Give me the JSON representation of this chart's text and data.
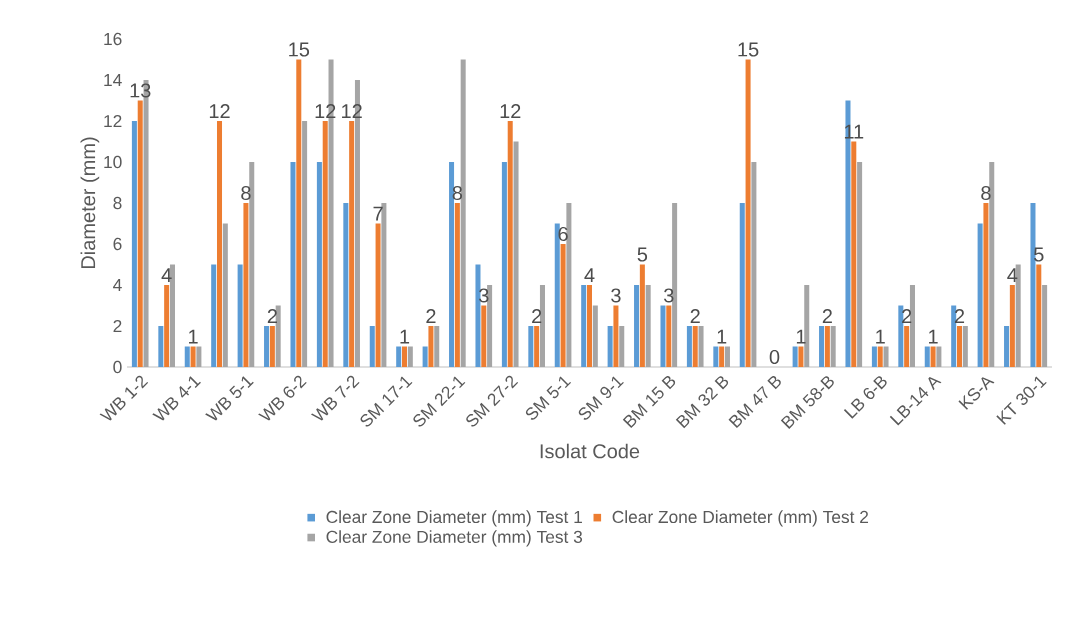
{
  "chart_data": {
    "type": "bar",
    "xlabel": "Isolat Code",
    "ylabel": "Diameter (mm)",
    "categories": [
      "WB 1-2",
      null,
      "WB 4-1",
      null,
      "WB 5-1",
      null,
      "WB 6-2",
      null,
      "WB 7-2",
      null,
      "SM 17-1",
      null,
      "SM 22-1",
      null,
      "SM 27-2",
      null,
      "SM 5-1",
      null,
      "SM 9-1",
      null,
      "BM 15 B",
      null,
      "BM 32 B",
      null,
      "BM 47 B",
      null,
      "BM 58-B",
      null,
      "LB 6-B",
      null,
      "LB-14 A",
      null,
      "KS-A",
      null,
      "KT 30-1"
    ],
    "series": [
      {
        "name": "Clear Zone Diameter (mm) Test 1",
        "color": "#5b9bd5",
        "values": [
          12,
          2,
          1,
          5,
          5,
          2,
          10,
          10,
          8,
          2,
          1,
          1,
          10,
          5,
          10,
          2,
          7,
          4,
          2,
          4,
          3,
          2,
          1,
          8,
          0,
          1,
          2,
          13,
          1,
          3,
          1,
          3,
          7,
          2,
          8
        ]
      },
      {
        "name": "Clear Zone Diameter (mm) Test 2",
        "color": "#ed7d31",
        "values": [
          13,
          4,
          1,
          12,
          8,
          2,
          15,
          12,
          12,
          7,
          1,
          2,
          8,
          3,
          12,
          2,
          6,
          4,
          3,
          5,
          3,
          2,
          1,
          15,
          0,
          1,
          2,
          11,
          1,
          2,
          1,
          2,
          8,
          4,
          5
        ],
        "value_labels": [
          "13",
          "4",
          "1",
          "12",
          "8",
          "2",
          "15",
          "12",
          "12",
          "7",
          "1",
          "2",
          "8",
          "3",
          "12",
          "2",
          "6",
          "4",
          "3",
          "5",
          "3",
          "2",
          "1",
          "15",
          "0",
          "1",
          "2",
          "11",
          "1",
          "2",
          "1",
          "2",
          "8",
          "4",
          "5"
        ]
      },
      {
        "name": "Clear Zone Diameter (mm) Test 3",
        "color": "#a5a5a5",
        "values": [
          14,
          5,
          1,
          7,
          10,
          3,
          12,
          15,
          14,
          8,
          1,
          2,
          15,
          4,
          11,
          4,
          8,
          3,
          2,
          4,
          8,
          2,
          1,
          10,
          0,
          4,
          2,
          10,
          1,
          4,
          1,
          2,
          10,
          5,
          4
        ]
      }
    ],
    "ylim": [
      0,
      16
    ],
    "yticks": [
      0,
      2,
      4,
      6,
      8,
      10,
      12,
      14,
      16
    ],
    "grid": false,
    "legend": "bottom"
  }
}
